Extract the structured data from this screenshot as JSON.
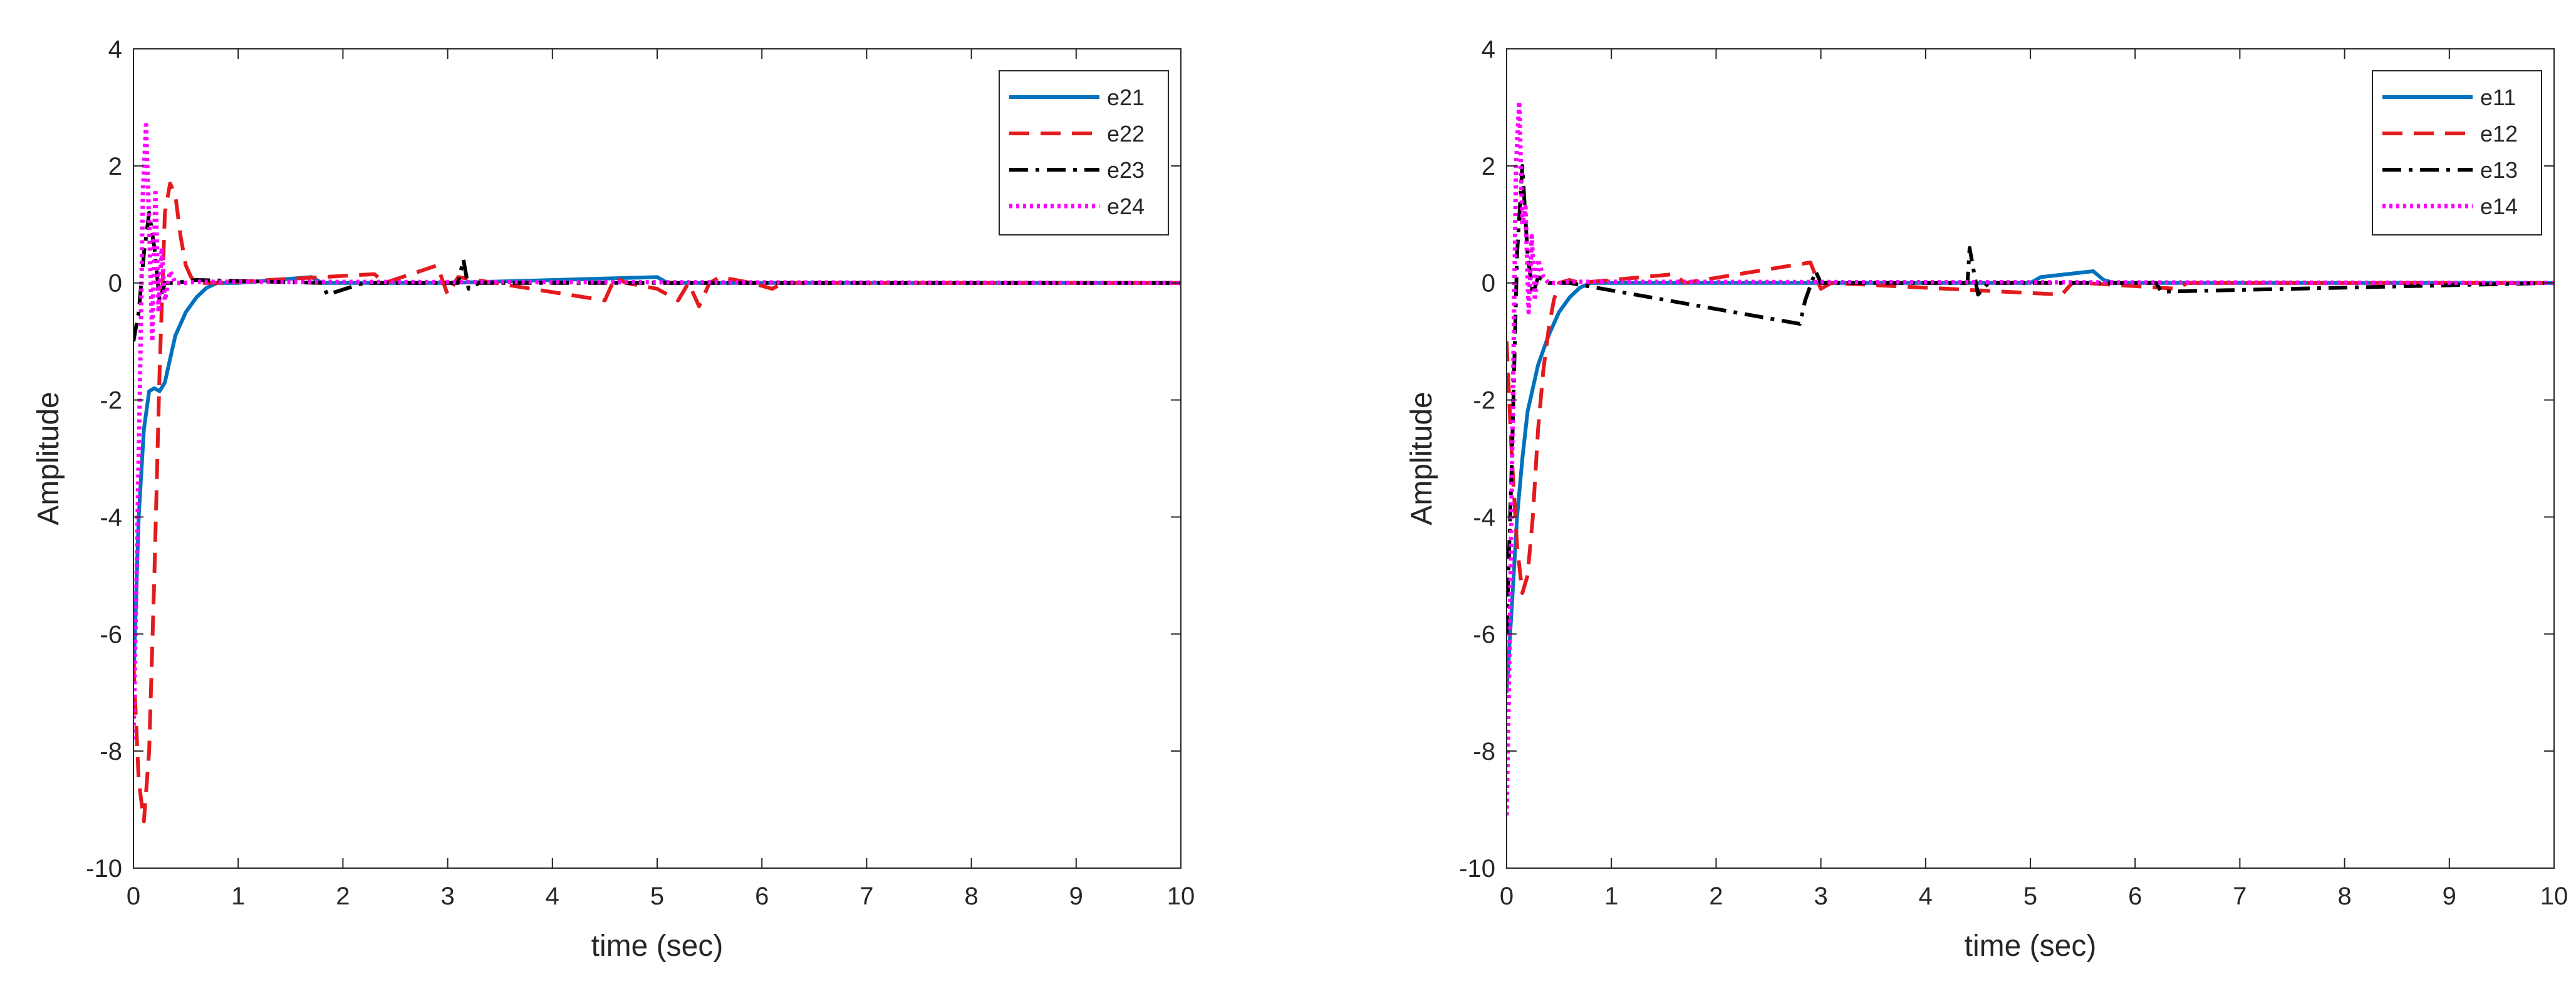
{
  "chart_data": [
    {
      "type": "line",
      "title": "",
      "xlabel": "time (sec)",
      "ylabel": "Amplitude",
      "xlim": [
        0,
        10
      ],
      "ylim": [
        -10,
        4
      ],
      "xticks": [
        0,
        1,
        2,
        3,
        4,
        5,
        6,
        7,
        8,
        9,
        10
      ],
      "yticks": [
        -10,
        -8,
        -6,
        -4,
        -2,
        0,
        2,
        4
      ],
      "grid": false,
      "legend_position": "top-right",
      "series": [
        {
          "name": "e21",
          "color": "#0072BD",
          "style": "solid",
          "x": [
            0,
            0.05,
            0.1,
            0.15,
            0.2,
            0.25,
            0.3,
            0.35,
            0.4,
            0.5,
            0.6,
            0.7,
            0.8,
            1.0,
            1.7,
            1.8,
            3.0,
            5.0,
            5.1,
            10
          ],
          "y": [
            -6.8,
            -4.0,
            -2.5,
            -1.85,
            -1.8,
            -1.85,
            -1.7,
            -1.3,
            -0.9,
            -0.5,
            -0.25,
            -0.08,
            0,
            0,
            0.1,
            0,
            0,
            0.1,
            0,
            0
          ]
        },
        {
          "name": "e22",
          "color": "#E41A1C",
          "style": "dashed",
          "x": [
            0,
            0.05,
            0.1,
            0.15,
            0.2,
            0.25,
            0.3,
            0.35,
            0.4,
            0.45,
            0.5,
            0.55,
            0.6,
            0.7,
            0.8,
            2.3,
            2.4,
            2.9,
            3.0,
            3.1,
            4.5,
            4.6,
            4.7,
            5.0,
            5.2,
            5.3,
            5.4,
            5.5,
            5.6,
            5.9,
            6.1,
            6.2,
            10
          ],
          "y": [
            -6.5,
            -8.5,
            -9.2,
            -8.0,
            -5.0,
            -1.5,
            1.2,
            1.7,
            1.5,
            0.8,
            0.3,
            0.1,
            0,
            0,
            0,
            0.15,
            0,
            0.3,
            -0.2,
            0.1,
            -0.3,
            0.1,
            0,
            -0.1,
            -0.3,
            0,
            -0.4,
            0,
            0.1,
            0,
            -0.1,
            0,
            0
          ]
        },
        {
          "name": "e23",
          "color": "#000000",
          "style": "dashdot",
          "x": [
            0,
            0.05,
            0.1,
            0.15,
            0.2,
            0.25,
            0.3,
            0.4,
            0.6,
            1.8,
            1.85,
            2.2,
            3.1,
            3.15,
            3.2,
            3.3,
            10
          ],
          "y": [
            -1.0,
            -0.5,
            0.5,
            1.2,
            0.6,
            -0.3,
            0,
            0,
            0.05,
            0,
            -0.2,
            0,
            0,
            0.4,
            -0.1,
            0,
            0
          ]
        },
        {
          "name": "e24",
          "color": "#FF00FF",
          "style": "dotted",
          "x": [
            0,
            0.03,
            0.06,
            0.09,
            0.12,
            0.15,
            0.18,
            0.21,
            0.24,
            0.27,
            0.3,
            0.35,
            0.4,
            0.5,
            0.6,
            10
          ],
          "y": [
            -7.8,
            -5.0,
            -2.0,
            1.5,
            2.7,
            1.0,
            -1.0,
            1.6,
            -0.5,
            0.6,
            -0.3,
            0.2,
            0,
            0,
            0.02,
            0
          ]
        }
      ]
    },
    {
      "type": "line",
      "title": "",
      "xlabel": "time (sec)",
      "ylabel": "Amplitude",
      "xlim": [
        0,
        10
      ],
      "ylim": [
        -10,
        4
      ],
      "xticks": [
        0,
        1,
        2,
        3,
        4,
        5,
        6,
        7,
        8,
        9,
        10
      ],
      "yticks": [
        -10,
        -8,
        -6,
        -4,
        -2,
        0,
        2,
        4
      ],
      "grid": false,
      "legend_position": "top-right",
      "series": [
        {
          "name": "e11",
          "color": "#0072BD",
          "style": "solid",
          "x": [
            0,
            0.05,
            0.1,
            0.15,
            0.2,
            0.3,
            0.4,
            0.5,
            0.6,
            0.7,
            0.8,
            1.0,
            5.0,
            5.1,
            5.6,
            5.7,
            5.8,
            10
          ],
          "y": [
            -7.0,
            -5.5,
            -4.0,
            -3.0,
            -2.2,
            -1.4,
            -0.9,
            -0.5,
            -0.25,
            -0.08,
            0,
            0,
            0,
            0.1,
            0.2,
            0.05,
            0,
            0
          ]
        },
        {
          "name": "e12",
          "color": "#E41A1C",
          "style": "dashed",
          "x": [
            0,
            0.05,
            0.1,
            0.15,
            0.2,
            0.25,
            0.3,
            0.35,
            0.4,
            0.45,
            0.5,
            0.6,
            0.7,
            1.6,
            1.7,
            2.9,
            3.0,
            3.1,
            5.3,
            5.4,
            5.5,
            6.4,
            6.5,
            10
          ],
          "y": [
            -1.0,
            -3.0,
            -4.5,
            -5.3,
            -5.0,
            -4.0,
            -2.5,
            -1.5,
            -0.8,
            -0.3,
            0,
            0.05,
            0,
            0.15,
            0,
            0.35,
            -0.1,
            0,
            -0.2,
            0,
            0,
            -0.1,
            0,
            0
          ]
        },
        {
          "name": "e13",
          "color": "#000000",
          "style": "dashdot",
          "x": [
            0,
            0.05,
            0.1,
            0.15,
            0.2,
            0.25,
            0.3,
            0.4,
            0.6,
            2.8,
            2.85,
            2.95,
            3.0,
            4.4,
            4.42,
            4.5,
            4.6,
            6.2,
            6.25,
            10
          ],
          "y": [
            -6.0,
            -3.0,
            0.5,
            2.0,
            0.5,
            -0.2,
            0.1,
            0,
            0,
            -0.7,
            -0.3,
            0.2,
            0,
            0,
            0.6,
            -0.2,
            0,
            0,
            -0.15,
            0
          ]
        },
        {
          "name": "e14",
          "color": "#FF00FF",
          "style": "dotted",
          "x": [
            0,
            0.03,
            0.06,
            0.09,
            0.12,
            0.15,
            0.18,
            0.21,
            0.24,
            0.27,
            0.3,
            0.35,
            0.4,
            0.5,
            0.6,
            10
          ],
          "y": [
            -9.1,
            -6.0,
            -2.0,
            2.0,
            3.1,
            1.0,
            1.3,
            -0.5,
            0.8,
            -0.3,
            0.4,
            0.1,
            0,
            0,
            0.02,
            0
          ]
        }
      ]
    }
  ]
}
